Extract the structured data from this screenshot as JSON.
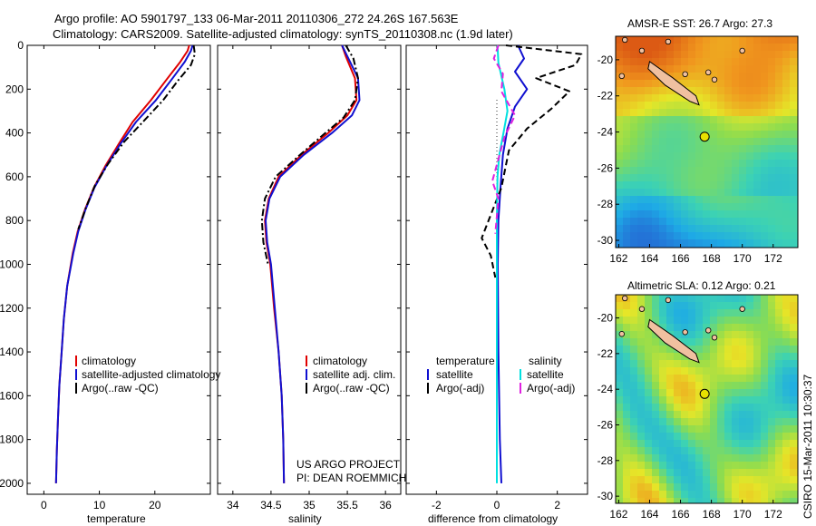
{
  "header": {
    "line1": "Argo profile: AO 5901797_133 06-Mar-2011 20110306_272 24.26S 167.563E",
    "line2": "Climatology: CARS2009. Satellite-adjusted climatology: synTS_20110308.nc (1.9d later)"
  },
  "side_stamp": "CSIRO 15-Mar-2011 10:30:37",
  "project_note": [
    "US ARGO PROJECT",
    "PI: DEAN ROEMMICH"
  ],
  "colors": {
    "climatology": "#e00000",
    "satellite": "#1010d0",
    "argo": "#000000",
    "salinity_sat": "#00e0e0",
    "salinity_argo": "#e020e0"
  },
  "chart_data": [
    {
      "type": "line",
      "xlabel": "temperature",
      "xlim": [
        -3,
        30
      ],
      "ylim": [
        2050,
        0
      ],
      "xticks": [
        "0",
        "10",
        "20"
      ],
      "xtick_values": [
        0,
        10,
        20
      ],
      "yticks": [
        "0",
        "200",
        "400",
        "600",
        "800",
        "1000",
        "1200",
        "1400",
        "1600",
        "1800",
        "2000"
      ],
      "ytick_values": [
        0,
        200,
        400,
        600,
        800,
        1000,
        1200,
        1400,
        1600,
        1800,
        2000
      ],
      "legend": [
        "climatology",
        "satellite-adjusted climatology",
        "Argo(..raw -QC)"
      ],
      "series": [
        {
          "name": "climatology",
          "color": "#e00000",
          "dash": "",
          "x": [
            26.2,
            25.9,
            24.6,
            22.3,
            19.3,
            16.0,
            13.5,
            11.1,
            9.0,
            7.4,
            6.1,
            5.2,
            4.2,
            3.6,
            3.2,
            2.8,
            2.55,
            2.35,
            2.2
          ],
          "y": [
            0,
            25,
            75,
            150,
            250,
            350,
            450,
            550,
            650,
            750,
            850,
            950,
            1100,
            1250,
            1400,
            1550,
            1700,
            1850,
            2000
          ]
        },
        {
          "name": "satellite-adjusted climatology",
          "color": "#1010d0",
          "dash": "",
          "x": [
            26.8,
            26.5,
            25.4,
            23.2,
            20.2,
            16.6,
            13.8,
            11.3,
            9.1,
            7.5,
            6.2,
            5.3,
            4.2,
            3.6,
            3.2,
            2.8,
            2.55,
            2.35,
            2.2
          ],
          "y": [
            0,
            25,
            75,
            150,
            250,
            350,
            450,
            550,
            650,
            750,
            850,
            950,
            1100,
            1250,
            1400,
            1550,
            1700,
            1850,
            2000
          ]
        },
        {
          "name": "Argo(..raw -QC)",
          "color": "#000000",
          "dash": "8,3,2,3",
          "x": [
            27.0,
            27.2,
            26.5,
            24.2,
            21.5,
            18.2,
            14.5,
            11.6,
            9.2,
            7.6,
            6.2
          ],
          "y": [
            0,
            40,
            90,
            160,
            250,
            340,
            440,
            540,
            640,
            740,
            840
          ]
        }
      ]
    },
    {
      "type": "line",
      "xlabel": "salinity",
      "xlim": [
        33.8,
        36.2
      ],
      "ylim": [
        2050,
        0
      ],
      "xticks": [
        "34",
        "34.5",
        "35",
        "35.5",
        "36"
      ],
      "xtick_values": [
        34,
        34.5,
        35,
        35.5,
        36
      ],
      "legend": [
        "climatology",
        "satellite adj. clim.",
        "Argo(..raw -QC)"
      ],
      "series": [
        {
          "name": "climatology",
          "color": "#e00000",
          "dash": "",
          "x": [
            35.43,
            35.48,
            35.6,
            35.62,
            35.5,
            35.25,
            34.9,
            34.6,
            34.47,
            34.42,
            34.44,
            34.49,
            34.54,
            34.6,
            34.64,
            34.66,
            34.67
          ],
          "y": [
            0,
            50,
            150,
            250,
            320,
            400,
            500,
            600,
            700,
            800,
            900,
            1000,
            1200,
            1400,
            1600,
            1800,
            2000
          ]
        },
        {
          "name": "satellite adj. clim.",
          "color": "#1010d0",
          "dash": "",
          "x": [
            35.43,
            35.5,
            35.64,
            35.66,
            35.56,
            35.3,
            34.93,
            34.62,
            34.48,
            34.43,
            34.45,
            34.5,
            34.55,
            34.6,
            34.64,
            34.66,
            34.67
          ],
          "y": [
            0,
            50,
            150,
            250,
            320,
            400,
            500,
            600,
            700,
            800,
            900,
            1000,
            1200,
            1400,
            1600,
            1800,
            2000
          ]
        },
        {
          "name": "Argo(..raw -QC)",
          "color": "#000000",
          "dash": "8,3,2,3",
          "x": [
            35.48,
            35.58,
            35.64,
            35.6,
            35.45,
            35.18,
            34.88,
            34.56,
            34.42,
            34.38,
            34.4,
            34.46
          ],
          "y": [
            0,
            60,
            150,
            250,
            330,
            410,
            500,
            600,
            700,
            800,
            900,
            1000
          ]
        }
      ]
    },
    {
      "type": "line",
      "xlabel": "difference from climatology",
      "xlim": [
        -3,
        3
      ],
      "ylim": [
        2050,
        0
      ],
      "xticks": [
        "-2",
        "0",
        "2"
      ],
      "xtick_values": [
        -2,
        0,
        2
      ],
      "legend_temperature": [
        "temperature",
        "satellite",
        "Argo(-adj)"
      ],
      "legend_salinity": [
        "salinity",
        "satellite",
        "Argo(-adj)"
      ],
      "series": [
        {
          "name": "satellite",
          "color": "#1010d0",
          "dash": "",
          "x": [
            0.7,
            0.9,
            0.6,
            1.0,
            0.6,
            0.35,
            0.2,
            0.12,
            0.05,
            0.03,
            0.05,
            0.1,
            0.15
          ],
          "y": [
            0,
            60,
            120,
            200,
            280,
            380,
            500,
            650,
            800,
            1000,
            1400,
            1800,
            2000
          ]
        },
        {
          "name": "Argo(-adj)",
          "color": "#000000",
          "dash": "7,4",
          "x": [
            0.3,
            2.8,
            2.6,
            1.3,
            2.4,
            1.8,
            1.0,
            0.4,
            0.15,
            -0.5,
            -0.2,
            -0.05
          ],
          "y": [
            0,
            40,
            90,
            150,
            210,
            290,
            380,
            480,
            650,
            880,
            960,
            1060
          ]
        },
        {
          "name": "salinity satellite",
          "color": "#00e0e0",
          "dash": "",
          "x": [
            0.02,
            0.05,
            0.25,
            0.35,
            0.22,
            0.08,
            0.02,
            0.0,
            0.0,
            0.0,
            0.0
          ],
          "y": [
            0,
            80,
            200,
            300,
            400,
            500,
            600,
            800,
            1000,
            1500,
            2000
          ]
        },
        {
          "name": "salinity Argo(-adj)",
          "color": "#e020e0",
          "dash": "7,4",
          "x": [
            0.05,
            -0.1,
            0.2,
            0.15,
            0.6,
            0.25,
            -0.15,
            0.05,
            -0.05
          ],
          "y": [
            0,
            60,
            130,
            210,
            320,
            420,
            620,
            700,
            860
          ]
        }
      ]
    },
    {
      "type": "heatmap",
      "title": "AMSR-E SST: 26.7 Argo: 27.3",
      "xticks": [
        "162",
        "164",
        "166",
        "168",
        "170",
        "172"
      ],
      "xtick_values": [
        162,
        164,
        166,
        168,
        170,
        172
      ],
      "yticks": [
        "-20",
        "-22",
        "-24",
        "-26",
        "-28",
        "-30"
      ],
      "ytick_values": [
        -20,
        -22,
        -24,
        -26,
        -28,
        -30
      ],
      "xlim": [
        161.8,
        173.6
      ],
      "ylim": [
        -30.4,
        -18.7
      ],
      "marker": {
        "lon": 167.563,
        "lat": -24.26
      }
    },
    {
      "type": "heatmap",
      "title": "Altimetric SLA: 0.12 Argo: 0.21",
      "xticks": [
        "162",
        "164",
        "166",
        "168",
        "170",
        "172"
      ],
      "xtick_values": [
        162,
        164,
        166,
        168,
        170,
        172
      ],
      "yticks": [
        "-20",
        "-22",
        "-24",
        "-26",
        "-28",
        "-30"
      ],
      "ytick_values": [
        -20,
        -22,
        -24,
        -26,
        -28,
        -30
      ],
      "xlim": [
        161.8,
        173.6
      ],
      "ylim": [
        -30.4,
        -18.7
      ],
      "marker": {
        "lon": 167.563,
        "lat": -24.26
      }
    }
  ]
}
